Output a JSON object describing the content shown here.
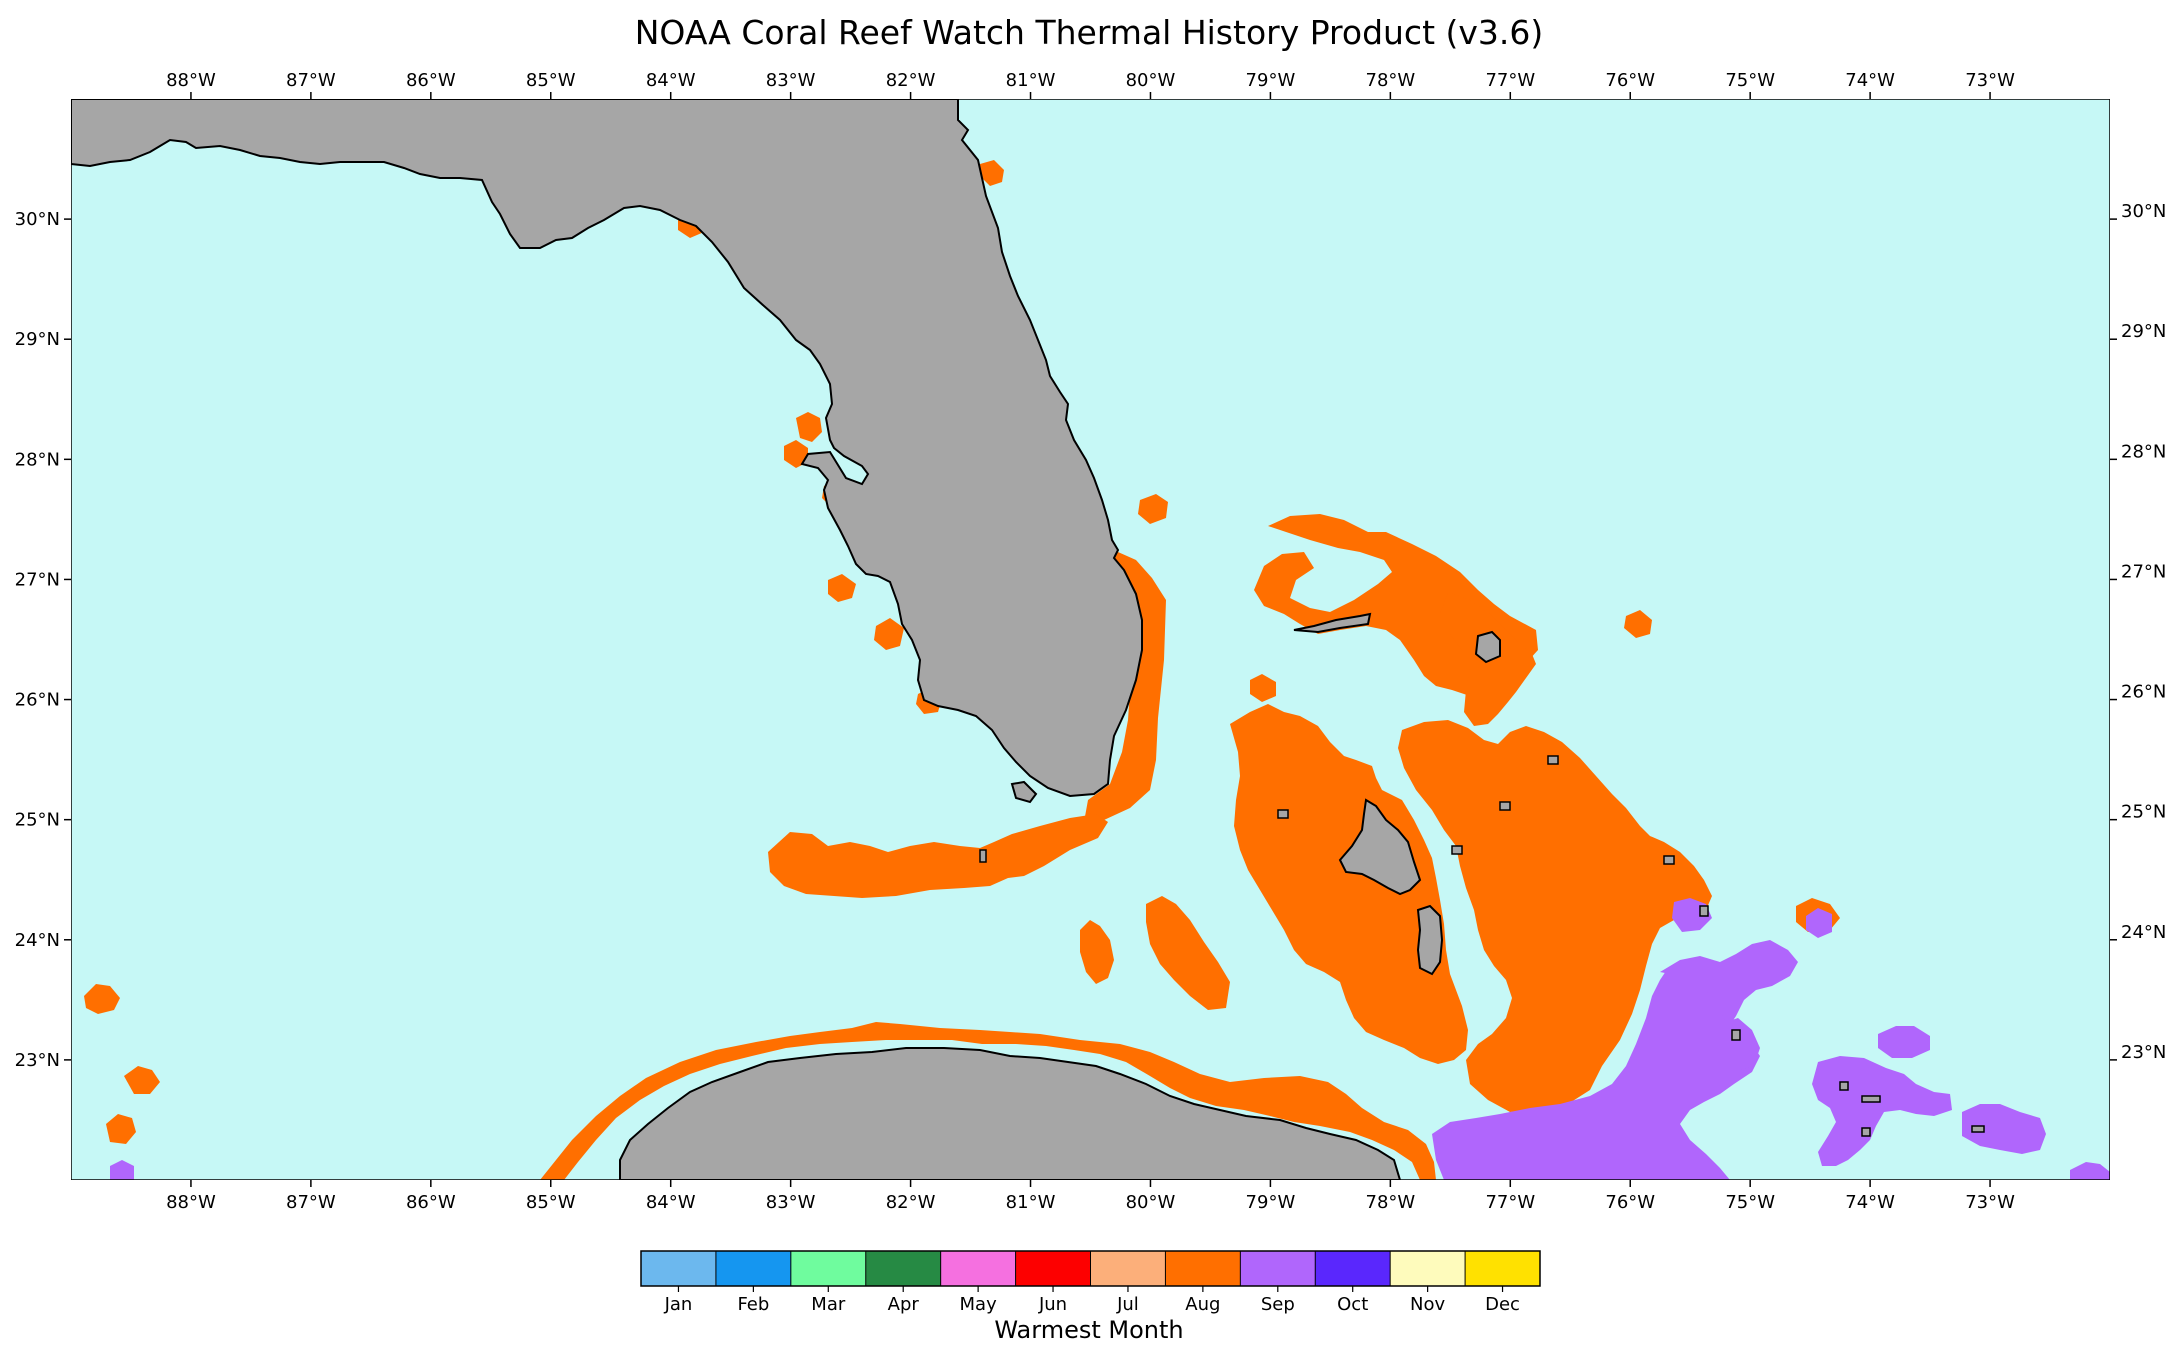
{
  "title": "NOAA Coral Reef Watch Thermal History Product (v3.6)",
  "map": {
    "lon_range": [
      -89,
      -72
    ],
    "lat_range": [
      22,
      31
    ],
    "lon_ticks": [
      "88°W",
      "87°W",
      "86°W",
      "85°W",
      "84°W",
      "83°W",
      "82°W",
      "81°W",
      "80°W",
      "79°W",
      "78°W",
      "77°W",
      "76°W",
      "75°W",
      "74°W",
      "73°W"
    ],
    "lat_ticks": [
      "23°N",
      "24°N",
      "25°N",
      "26°N",
      "27°N",
      "28°N",
      "29°N",
      "30°N"
    ],
    "ocean_color": "#c6f8f6",
    "land_color": "#a6a6a6",
    "coastline_color": "#000000"
  },
  "legend": {
    "title": "Warmest Month",
    "months": [
      {
        "label": "Jan",
        "color": "#6cb8ee"
      },
      {
        "label": "Feb",
        "color": "#1596f0"
      },
      {
        "label": "Mar",
        "color": "#6ffc9e"
      },
      {
        "label": "Apr",
        "color": "#268a44"
      },
      {
        "label": "May",
        "color": "#f570e0"
      },
      {
        "label": "Jun",
        "color": "#fd0000"
      },
      {
        "label": "Jul",
        "color": "#fcaf7a"
      },
      {
        "label": "Aug",
        "color": "#ff6f00"
      },
      {
        "label": "Sep",
        "color": "#b066fc"
      },
      {
        "label": "Oct",
        "color": "#5a27fd"
      },
      {
        "label": "Nov",
        "color": "#fefbbc"
      },
      {
        "label": "Dec",
        "color": "#ffe100"
      }
    ]
  }
}
